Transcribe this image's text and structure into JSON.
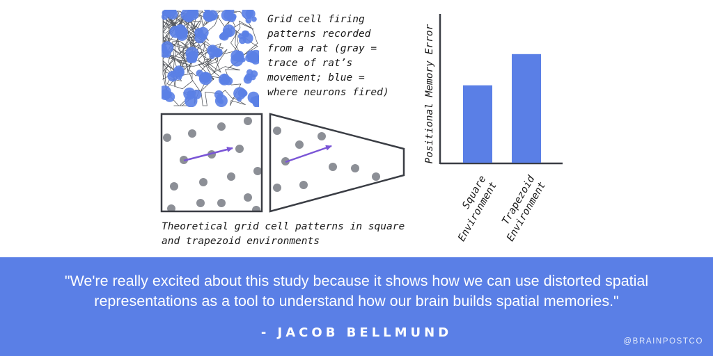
{
  "rat_caption": [
    "Grid cell firing",
    "patterns recorded",
    "from a rat (gray =",
    "trace of rat’s",
    "movement; blue =",
    "where neurons fired)"
  ],
  "theory_caption": [
    "Theoretical grid cell patterns in square",
    "and trapezoid environments"
  ],
  "chart_data": {
    "type": "bar",
    "categories": [
      [
        "Square",
        "Environment"
      ],
      [
        "Trapezoid",
        "Environment"
      ]
    ],
    "values": [
      0.52,
      0.73
    ],
    "ylabel": "Positional Memory Error",
    "xlabel": "",
    "ylim": [
      0,
      1
    ],
    "grid": false,
    "bar_color": "#5a7fe6"
  },
  "quote": {
    "text": "\"We're really excited about this study because it shows how we can use distorted spatial representations as a tool to understand how our brain builds spatial memories.\"",
    "author": "- JACOB BELLMUND"
  },
  "handle": "@BRAINPOSTCO",
  "colors": {
    "accent": "#5a7fe6",
    "arrow": "#7a55d6",
    "dot": "#8c8f96",
    "trace": "#3a3d44"
  }
}
